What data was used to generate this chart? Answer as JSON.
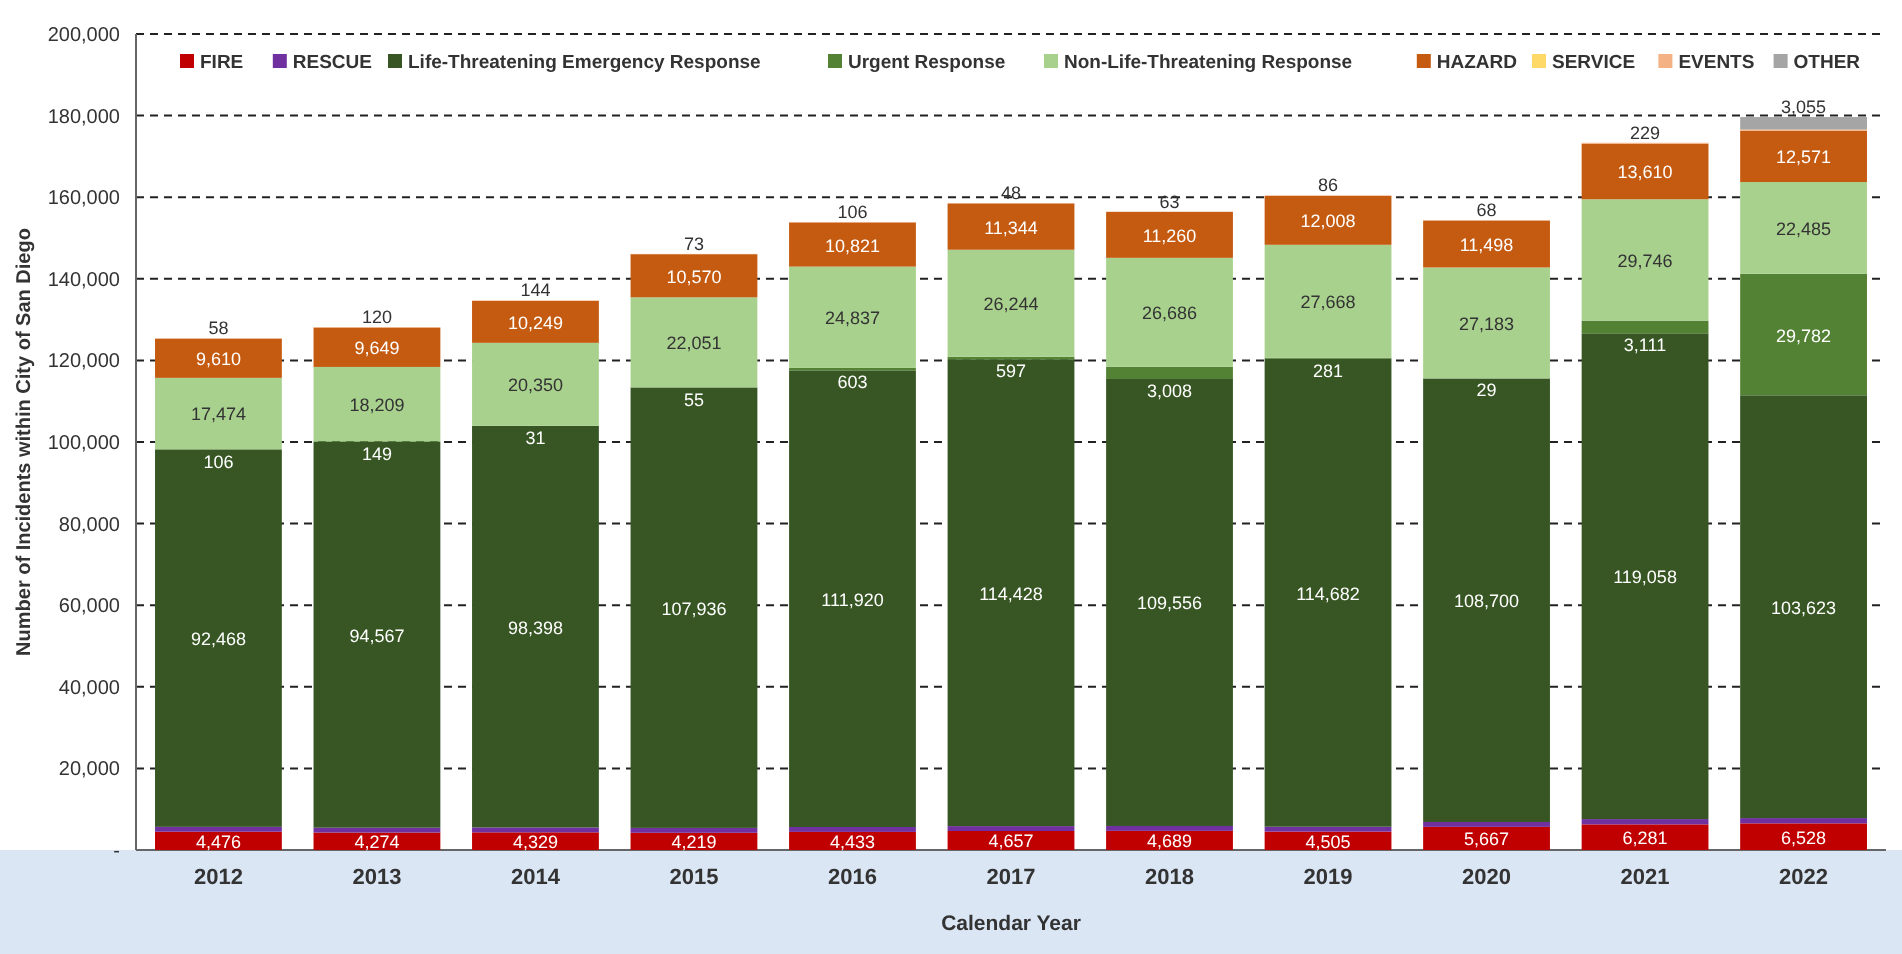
{
  "chart_data": {
    "type": "bar",
    "stacked": true,
    "xlabel": "Calendar Year",
    "ylabel": "Number of Incidents within City of San Diego",
    "categories": [
      "2012",
      "2013",
      "2014",
      "2015",
      "2016",
      "2017",
      "2018",
      "2019",
      "2020",
      "2021",
      "2022"
    ],
    "ylim": [
      0,
      200000
    ],
    "yticks": [
      {
        "value": 0,
        "label": "-"
      },
      {
        "value": 20000,
        "label": "20,000"
      },
      {
        "value": 40000,
        "label": "40,000"
      },
      {
        "value": 60000,
        "label": "60,000"
      },
      {
        "value": 80000,
        "label": "80,000"
      },
      {
        "value": 100000,
        "label": "100,000"
      },
      {
        "value": 120000,
        "label": "120,000"
      },
      {
        "value": 140000,
        "label": "140,000"
      },
      {
        "value": 160000,
        "label": "160,000"
      },
      {
        "value": 180000,
        "label": "180,000"
      },
      {
        "value": 200000,
        "label": "200,000"
      }
    ],
    "grid": "y",
    "legend": "top",
    "series": [
      {
        "name": "FIRE",
        "color": "#c00000",
        "values": [
          4476,
          4274,
          4329,
          4219,
          4433,
          4657,
          4689,
          4505,
          5667,
          6281,
          6528
        ],
        "value_labels": [
          "4,476",
          "4,274",
          "4,329",
          "4,219",
          "4,433",
          "4,657",
          "4,689",
          "4,505",
          "5,667",
          "6,281",
          "6,528"
        ]
      },
      {
        "name": "RESCUE",
        "color": "#7030a0",
        "values": [
          1200,
          1200,
          1200,
          1200,
          1200,
          1200,
          1200,
          1200,
          1200,
          1300,
          1300
        ],
        "value_labels": [
          null,
          null,
          null,
          null,
          null,
          null,
          null,
          null,
          null,
          null,
          null
        ]
      },
      {
        "name": "Life-Threatening Emergency Response",
        "color": "#375623",
        "values": [
          92468,
          94567,
          98398,
          107936,
          111920,
          114428,
          109556,
          114682,
          108700,
          119058,
          103623
        ],
        "value_labels": [
          "92,468",
          "94,567",
          "98,398",
          "107,936",
          "111,920",
          "114,428",
          "109,556",
          "114,682",
          "108,700",
          "119,058",
          "103,623"
        ]
      },
      {
        "name": "Urgent Response",
        "color": "#548235",
        "values": [
          106,
          149,
          31,
          55,
          603,
          597,
          3008,
          281,
          29,
          3111,
          29782
        ],
        "value_labels": [
          "106",
          "149",
          "31",
          "55",
          "603",
          "597",
          "3,008",
          "281",
          "29",
          "3,111",
          "29,782"
        ]
      },
      {
        "name": "Non-Life-Threatening Response",
        "color": "#a9d18e",
        "values": [
          17474,
          18209,
          20350,
          22051,
          24837,
          26244,
          26686,
          27668,
          27183,
          29746,
          22485
        ],
        "value_labels": [
          "17,474",
          "18,209",
          "20,350",
          "22,051",
          "24,837",
          "26,244",
          "26,686",
          "27,668",
          "27,183",
          "29,746",
          "22,485"
        ]
      },
      {
        "name": "HAZARD",
        "color": "#c55a11",
        "values": [
          9610,
          9649,
          10249,
          10570,
          10821,
          11344,
          11260,
          12008,
          11498,
          13610,
          12571
        ],
        "value_labels": [
          "9,610",
          "9,649",
          "10,249",
          "10,570",
          "10,821",
          "11,344",
          "11,260",
          "12,008",
          "11,498",
          "13,610",
          "12,571"
        ]
      },
      {
        "name": "SERVICE",
        "color": "#ffd966",
        "values": [
          null,
          null,
          null,
          null,
          null,
          null,
          null,
          null,
          null,
          null,
          null
        ],
        "value_labels": [
          null,
          null,
          null,
          null,
          null,
          null,
          null,
          null,
          null,
          null,
          null
        ]
      },
      {
        "name": "EVENTS",
        "color": "#f4b183",
        "values": [
          58,
          120,
          144,
          73,
          106,
          48,
          63,
          86,
          68,
          229,
          300
        ],
        "value_labels": [
          "58",
          "120",
          "144",
          "73",
          "106",
          "48",
          "63",
          "86",
          "68",
          "229",
          null
        ]
      },
      {
        "name": "OTHER",
        "color": "#a5a5a5",
        "values": [
          null,
          null,
          null,
          null,
          null,
          null,
          null,
          null,
          null,
          null,
          3055
        ],
        "value_labels": [
          null,
          null,
          null,
          null,
          null,
          null,
          null,
          null,
          null,
          null,
          "3,055"
        ]
      }
    ]
  }
}
